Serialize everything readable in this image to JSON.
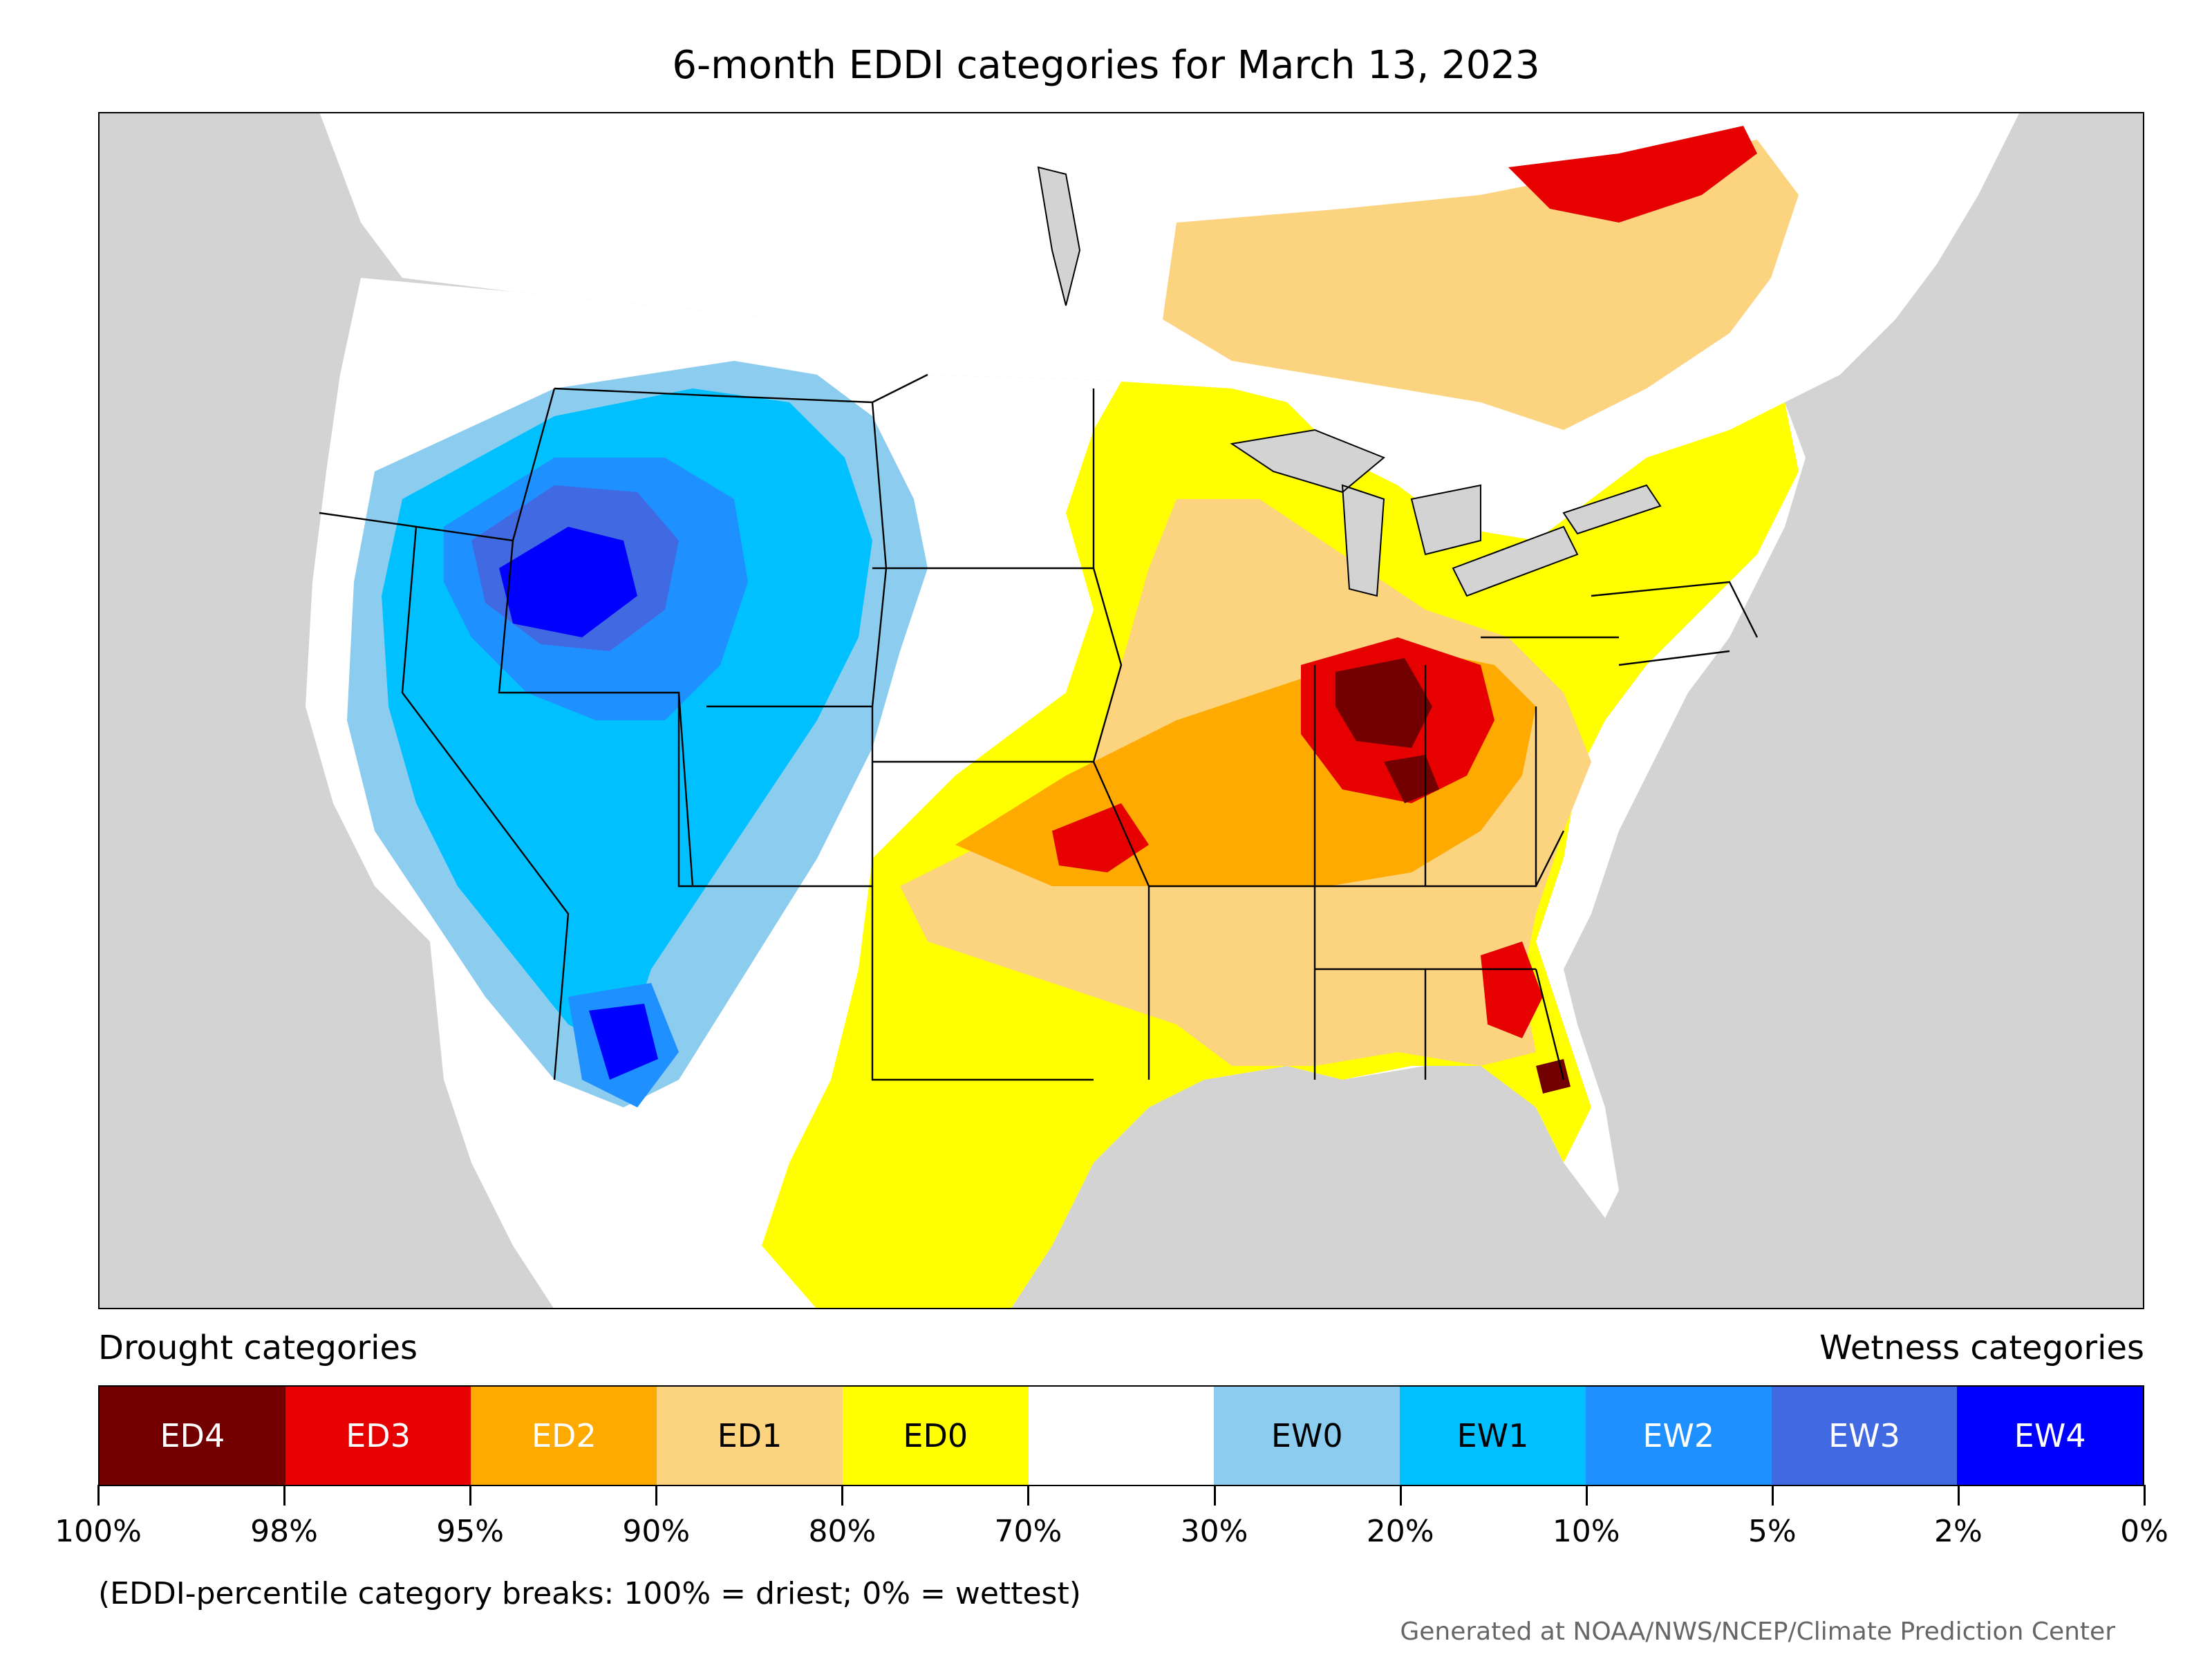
{
  "title": "6-month EDDI categories for March 13, 2023",
  "legend": {
    "left_caption": "Drought categories",
    "right_caption": "Wetness categories",
    "categories": [
      {
        "label": "ED4",
        "color": "#730000",
        "text_color": "#ffffff"
      },
      {
        "label": "ED3",
        "color": "#e60000",
        "text_color": "#ffffff"
      },
      {
        "label": "ED2",
        "color": "#ffaa00",
        "text_color": "#ffffff"
      },
      {
        "label": "ED1",
        "color": "#fcd37f",
        "text_color": "#000000"
      },
      {
        "label": "ED0",
        "color": "#ffff00",
        "text_color": "#000000"
      },
      {
        "label": "",
        "color": "#ffffff",
        "text_color": "#000000"
      },
      {
        "label": "EW0",
        "color": "#8ccdef",
        "text_color": "#000000"
      },
      {
        "label": "EW1",
        "color": "#00c0ff",
        "text_color": "#000000"
      },
      {
        "label": "EW2",
        "color": "#1e90ff",
        "text_color": "#ffffff"
      },
      {
        "label": "EW3",
        "color": "#4169e1",
        "text_color": "#ffffff"
      },
      {
        "label": "EW4",
        "color": "#0000ff",
        "text_color": "#ffffff"
      }
    ],
    "breaks": [
      "100%",
      "98%",
      "95%",
      "90%",
      "80%",
      "70%",
      "30%",
      "20%",
      "10%",
      "5%",
      "2%",
      "0%"
    ]
  },
  "note": "(EDDI-percentile category breaks: 100% = driest; 0% = wettest)",
  "credit": "Generated at NOAA/NWS/NCEP/Climate Prediction Center"
}
